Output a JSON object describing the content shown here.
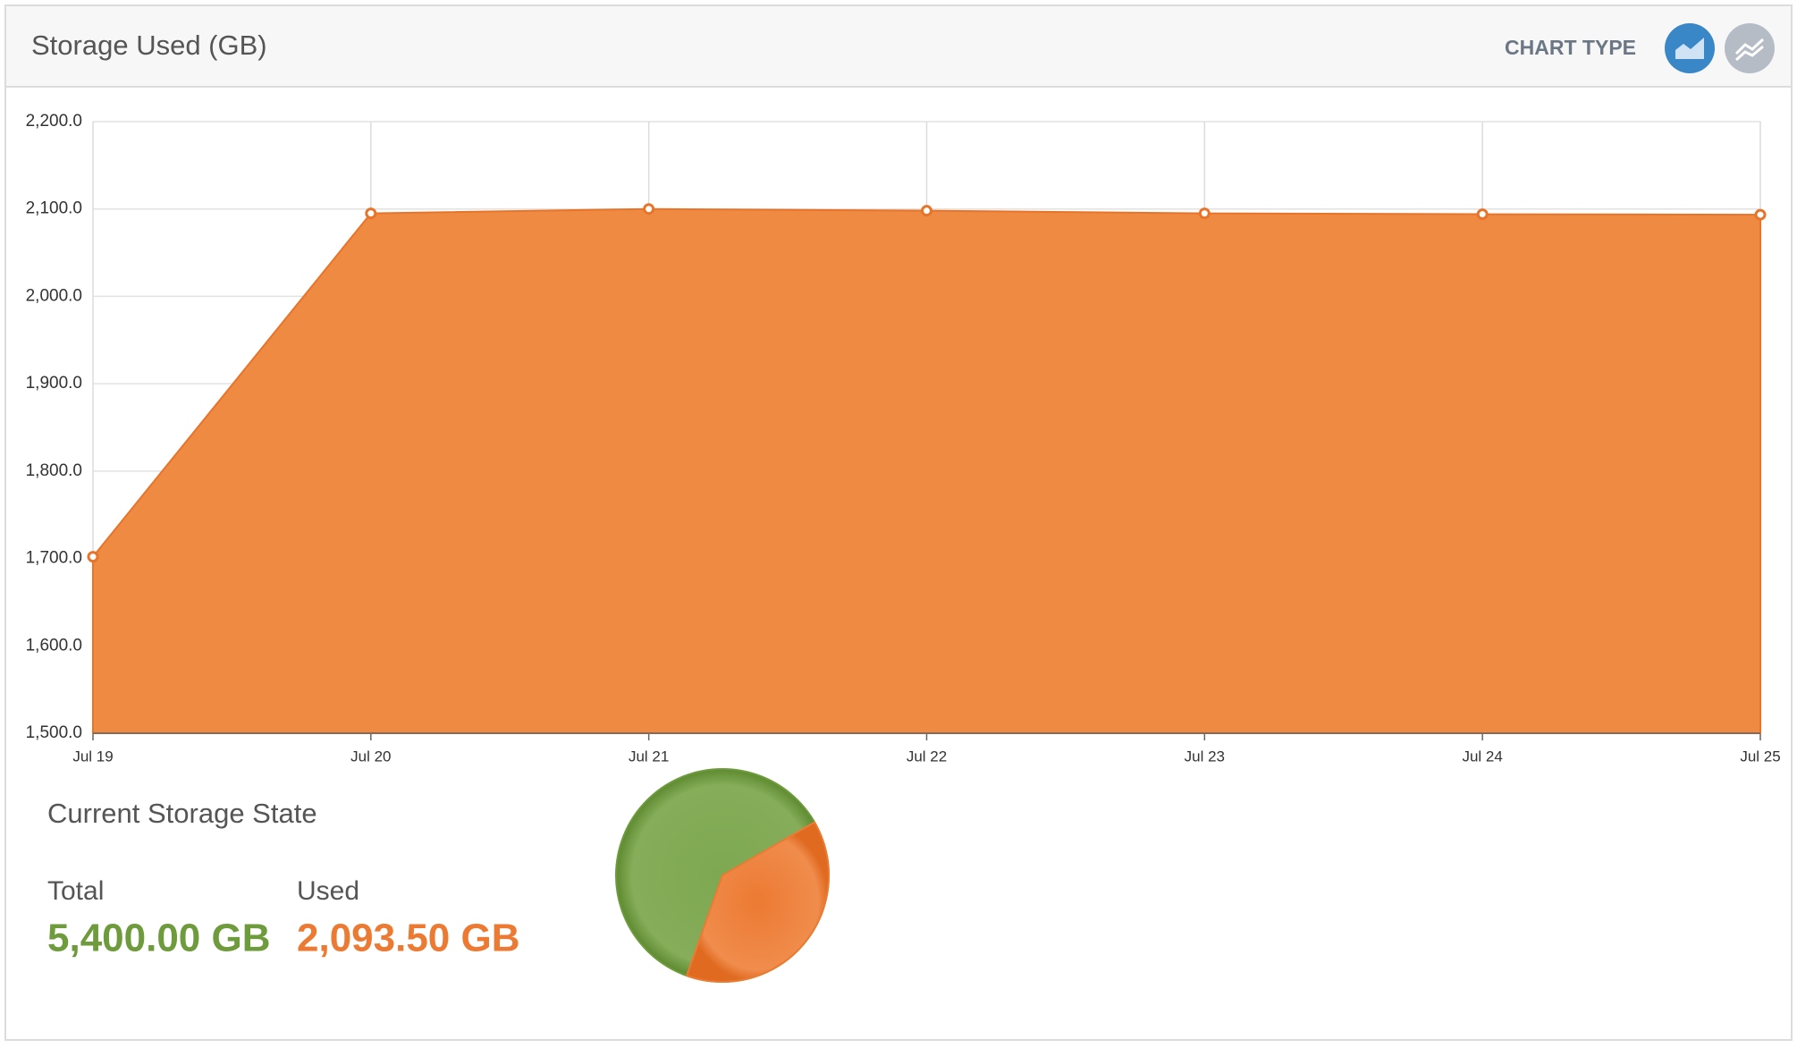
{
  "header": {
    "title": "Storage Used (GB)",
    "chart_type_label": "CHART TYPE"
  },
  "chart_data": [
    {
      "type": "area",
      "categories": [
        "Jul 19",
        "Jul 20",
        "Jul 21",
        "Jul 22",
        "Jul 23",
        "Jul 24",
        "Jul 25"
      ],
      "series": [
        {
          "color": "#ef8a42",
          "values": [
            1702,
            2095,
            2100,
            2098,
            2095,
            2094,
            2093.5
          ]
        }
      ],
      "ylim": [
        1500,
        2200
      ],
      "yticks": [
        {
          "value": 1500,
          "label": "1,500.0"
        },
        {
          "value": 1600,
          "label": "1,600.0"
        },
        {
          "value": 1700,
          "label": "1,700.0"
        },
        {
          "value": 1800,
          "label": "1,800.0"
        },
        {
          "value": 1900,
          "label": "1,900.0"
        },
        {
          "value": 2000,
          "label": "2,000.0"
        },
        {
          "value": 2100,
          "label": "2,100.0"
        },
        {
          "value": 2200,
          "label": "2,200.0"
        }
      ],
      "grid": true
    },
    {
      "type": "pie",
      "title": "Current Storage State",
      "categories": [
        "Total",
        "Used"
      ],
      "values": [
        5400,
        2093.5
      ],
      "value_labels": [
        "5,400.00 GB",
        "2,093.50 GB"
      ],
      "colors": [
        "#6e9b3c",
        "#ec7a32"
      ]
    }
  ]
}
